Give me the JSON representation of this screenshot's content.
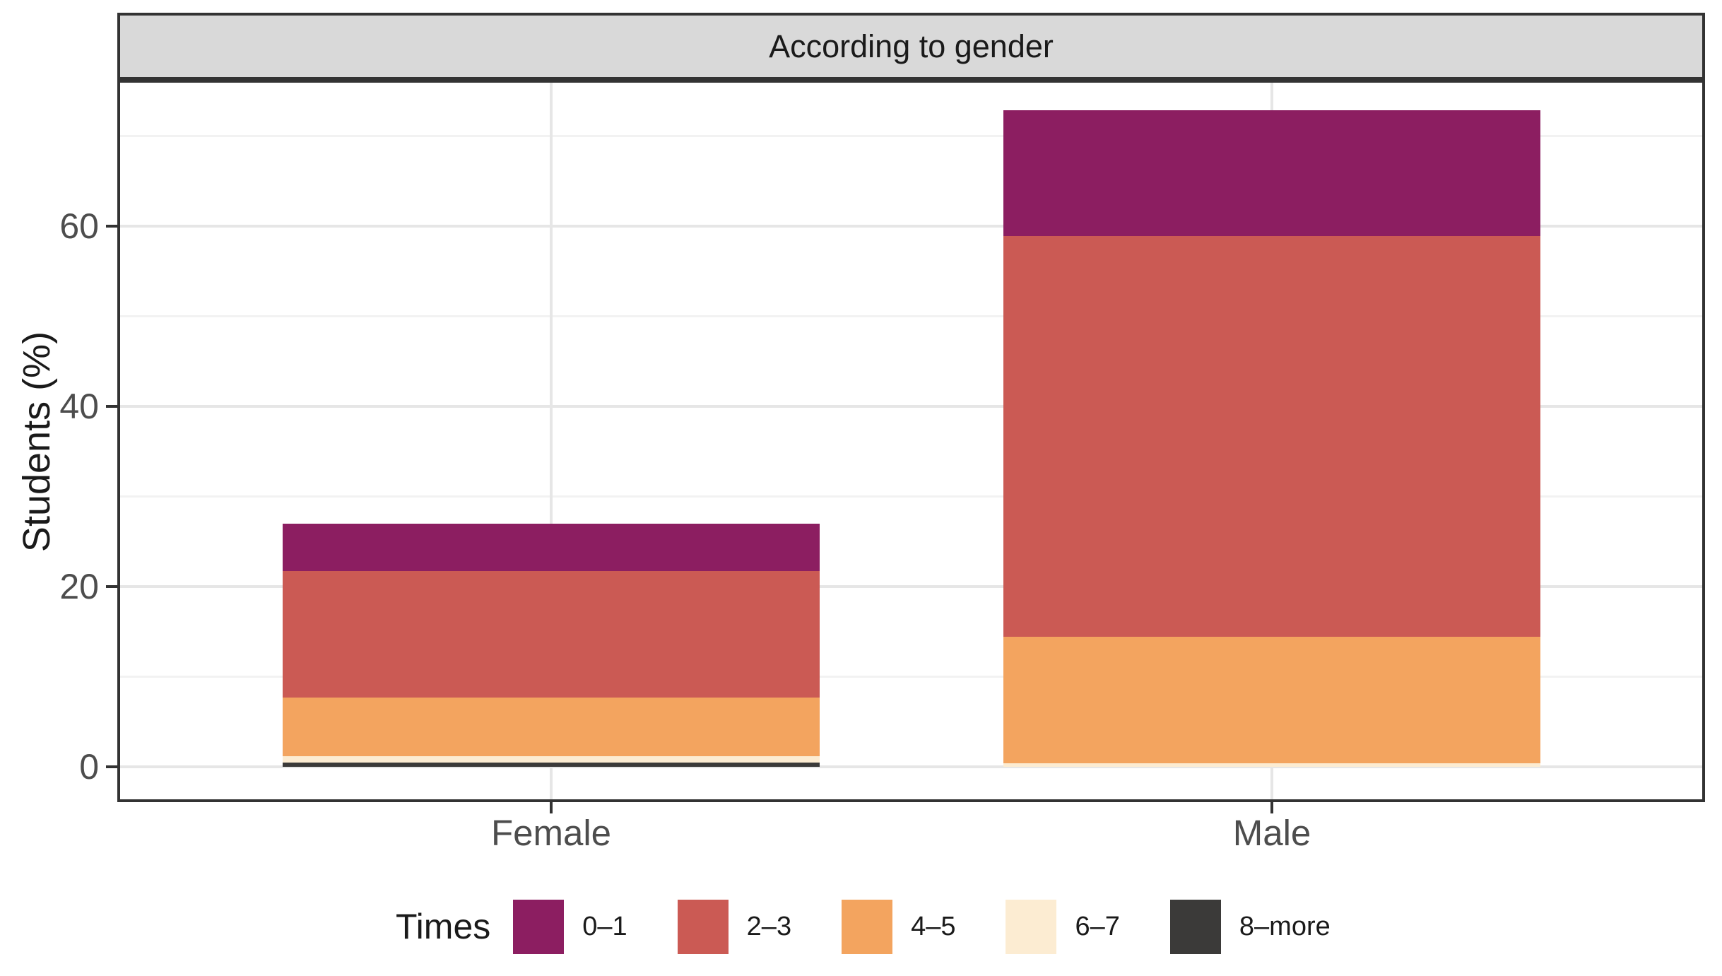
{
  "strip": {
    "title": "According to gender"
  },
  "y_axis": {
    "title": "Students (%)"
  },
  "legend": {
    "title": "Times",
    "position": "bottom"
  },
  "colors": {
    "strip_fill": "#d9d9d9",
    "panel_border": "#333333",
    "grid_major": "#e6e6e6",
    "grid_minor": "#f2f2f2",
    "tick_text": "#4d4d4d",
    "title_text": "#1a1a1a"
  },
  "chart_data": {
    "type": "bar",
    "stacked": true,
    "title": "According to gender",
    "xlabel": "",
    "ylabel": "Students (%)",
    "categories": [
      "Female",
      "Male"
    ],
    "series": [
      {
        "name": "0–1",
        "color": "#8c1e61",
        "values": [
          5.3,
          14.0
        ]
      },
      {
        "name": "2–3",
        "color": "#cb5a54",
        "values": [
          14.0,
          44.5
        ]
      },
      {
        "name": "4–5",
        "color": "#f3a45f",
        "values": [
          6.5,
          14.0
        ]
      },
      {
        "name": "6–7",
        "color": "#fcecd2",
        "values": [
          0.7,
          0.4
        ]
      },
      {
        "name": "8–more",
        "color": "#3b3a39",
        "values": [
          0.5,
          0.0
        ]
      }
    ],
    "category_totals": [
      27.0,
      72.9
    ],
    "ylim": [
      0,
      76
    ],
    "yticks": [
      0,
      20,
      40,
      60
    ],
    "yticks_minor": [
      10,
      30,
      50,
      70
    ],
    "grid": true,
    "legend_title": "Times",
    "legend_position": "bottom"
  }
}
